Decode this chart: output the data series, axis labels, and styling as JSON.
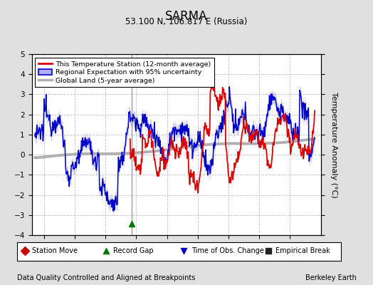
{
  "title": "SARMA",
  "subtitle": "53.100 N, 106.817 E (Russia)",
  "ylabel": "Temperature Anomaly (°C)",
  "xlabel_bottom": "Data Quality Controlled and Aligned at Breakpoints",
  "xlabel_right": "Berkeley Earth",
  "ylim": [
    -4,
    5
  ],
  "xlim": [
    1958,
    2005
  ],
  "xticks": [
    1960,
    1965,
    1970,
    1975,
    1980,
    1985,
    1990,
    1995,
    2000
  ],
  "yticks": [
    -4,
    -3,
    -2,
    -1,
    0,
    1,
    2,
    3,
    4,
    5
  ],
  "bg_color": "#e0e0e0",
  "plot_bg_color": "#ffffff",
  "grid_color": "#c0c0d0",
  "red_line_color": "#dd0000",
  "blue_line_color": "#0000cc",
  "blue_fill_color": "#b0b0ee",
  "gray_line_color": "#b0b0b0",
  "record_gap_x": 1974.2,
  "vertical_line_x": 1974.2,
  "legend_labels": [
    "This Temperature Station (12-month average)",
    "Regional Expectation with 95% uncertainty",
    "Global Land (5-year average)"
  ],
  "bottom_markers": [
    {
      "marker": "D",
      "color": "#cc0000",
      "label": "Station Move"
    },
    {
      "marker": "^",
      "color": "#007700",
      "label": "Record Gap"
    },
    {
      "marker": "v",
      "color": "#0000cc",
      "label": "Time of Obs. Change"
    },
    {
      "marker": "s",
      "color": "#333333",
      "label": "Empirical Break"
    }
  ]
}
